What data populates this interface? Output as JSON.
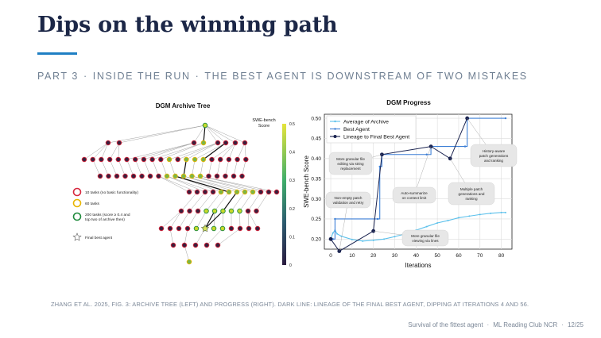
{
  "slide": {
    "title": "Dips on the winning path",
    "subtitle": {
      "part": "PART 3",
      "section": "INSIDE THE RUN",
      "tagline": "THE BEST AGENT IS DOWNSTREAM OF TWO MISTAKES"
    },
    "caption": "ZHANG ET AL. 2025, FIG. 3: ARCHIVE TREE (LEFT) AND PROGRESS (RIGHT). DARK LINE: LINEAGE OF THE FINAL BEST AGENT, DIPPING AT ITERATIONS 4 AND 56.",
    "footer": {
      "talk": "Survival of the fittest agent",
      "venue": "ML Reading Club NCR",
      "page": "12/25"
    }
  },
  "tree_panel": {
    "title": "DGM Archive Tree",
    "colorbar_label": [
      "SWE-bench",
      "Score"
    ],
    "colorbar_ticks": [
      "0.5",
      "0.4",
      "0.3",
      "0.2",
      "0.1",
      "0"
    ],
    "legend": [
      {
        "label": "10 tasks (no basic functionality)",
        "ring_color": "#d7263d"
      },
      {
        "label": "60 tasks",
        "ring_color": "#e8b400"
      },
      {
        "label": "200 tasks (score ≥ 0.4 and top two of archive then)",
        "ring_color": "#1f8a3c"
      },
      {
        "label": "Final best agent",
        "icon": "star-icon"
      }
    ]
  },
  "chart_data": {
    "type": "line",
    "title": "DGM Progress",
    "xlabel": "Iterations",
    "ylabel": "SWE-bench Score",
    "xlim": [
      -3,
      85
    ],
    "ylim": [
      0.175,
      0.51
    ],
    "xticks": [
      0,
      10,
      20,
      30,
      40,
      50,
      60,
      70,
      80
    ],
    "yticks": [
      0.2,
      0.25,
      0.3,
      0.35,
      0.4,
      0.45,
      0.5
    ],
    "grid": true,
    "legend_position": "top-left",
    "colors": {
      "average": "#5bc0eb",
      "best": "#3d7fd6",
      "lineage": "#1a2350"
    },
    "series": [
      {
        "name": "Average of Archive",
        "x": [
          0,
          1,
          2,
          3,
          5,
          10,
          15,
          20,
          25,
          30,
          35,
          40,
          45,
          50,
          55,
          60,
          65,
          70,
          75,
          80,
          82
        ],
        "y": [
          0.2,
          0.215,
          0.222,
          0.213,
          0.207,
          0.199,
          0.195,
          0.197,
          0.2,
          0.206,
          0.213,
          0.222,
          0.231,
          0.24,
          0.246,
          0.253,
          0.257,
          0.261,
          0.264,
          0.266,
          0.266
        ]
      },
      {
        "name": "Best Agent",
        "x": [
          0,
          1,
          2,
          22,
          23,
          24,
          45,
          47,
          63,
          64,
          82
        ],
        "y": [
          0.2,
          0.2,
          0.25,
          0.25,
          0.38,
          0.41,
          0.41,
          0.43,
          0.43,
          0.5,
          0.5
        ]
      },
      {
        "name": "Lineage to Final Best Agent",
        "x": [
          0,
          4,
          20,
          24,
          47,
          56,
          64
        ],
        "y": [
          0.2,
          0.17,
          0.22,
          0.41,
          0.43,
          0.4,
          0.5
        ]
      }
    ],
    "annotations": [
      {
        "text": [
          "More granular file",
          "editing via string",
          "replacement"
        ]
      },
      {
        "text": [
          "Non-empty patch",
          "validation and retry"
        ]
      },
      {
        "text": [
          "Auto-summarize",
          "on context limit"
        ]
      },
      {
        "text": [
          "Multiple patch",
          "generations and",
          "ranking"
        ]
      },
      {
        "text": [
          "History-aware",
          "patch generations",
          "and ranking"
        ]
      },
      {
        "text": [
          "More granular file",
          "viewing via lines"
        ]
      }
    ]
  }
}
